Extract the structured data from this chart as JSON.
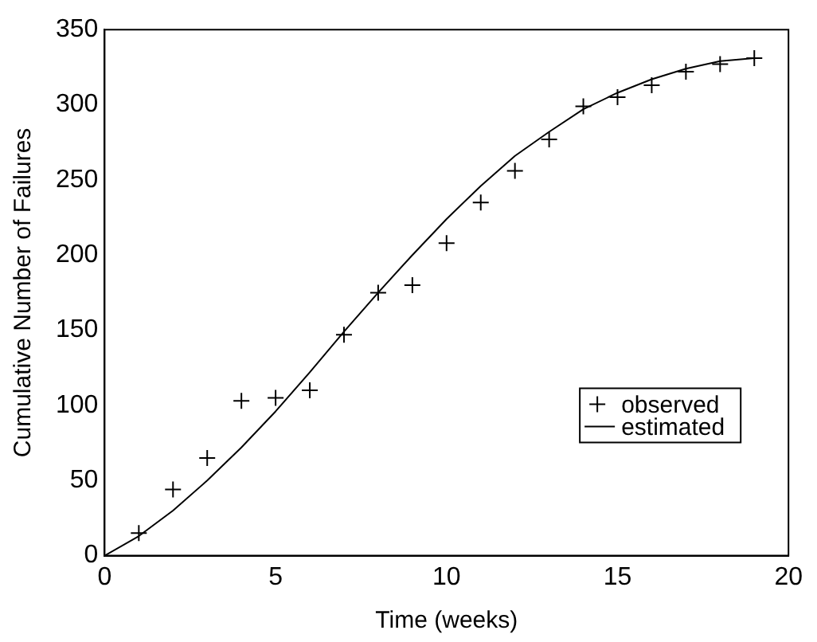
{
  "chart_data": {
    "type": "scatter",
    "xlabel": "Time (weeks)",
    "ylabel": "Cumulative Number of Failures",
    "xlim": [
      0,
      20
    ],
    "xticks": [
      0,
      5,
      10,
      15,
      20
    ],
    "ylim": [
      0,
      350
    ],
    "yticks": [
      0,
      50,
      100,
      150,
      200,
      250,
      300,
      350
    ],
    "grid": false,
    "legend": "right",
    "series": [
      {
        "name": "observed",
        "marker": "cross",
        "color": "#000000",
        "x": [
          1,
          2,
          3,
          4,
          5,
          6,
          7,
          8,
          9,
          10,
          11,
          12,
          13,
          14,
          15,
          16,
          17,
          18,
          19
        ],
        "values": [
          15,
          44,
          65,
          103,
          105,
          110,
          147,
          175,
          180,
          208,
          235,
          256,
          277,
          299,
          305,
          313,
          322,
          327,
          331
        ]
      },
      {
        "name": "estimated",
        "type": "line",
        "marker": "none",
        "line_style": "solid",
        "color": "#000000",
        "x": [
          0,
          1,
          2,
          3,
          4,
          5,
          6,
          7,
          8,
          9,
          10,
          11,
          12,
          13,
          14,
          15,
          16,
          17,
          18,
          19
        ],
        "values": [
          0,
          13,
          30,
          50,
          72,
          96,
          122,
          149,
          175,
          200,
          224,
          246,
          266,
          282,
          297,
          308,
          317,
          324,
          329,
          331
        ]
      }
    ]
  }
}
